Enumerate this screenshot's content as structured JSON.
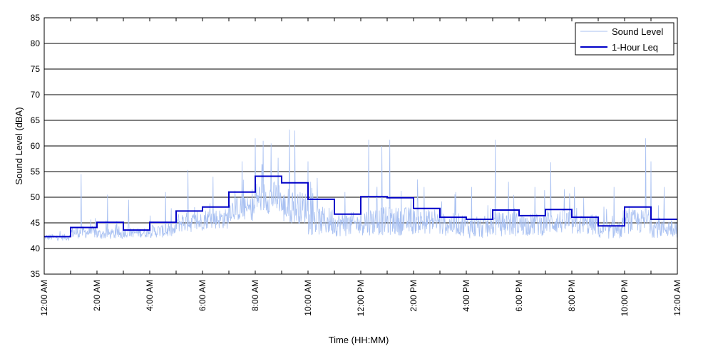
{
  "chart_data": {
    "type": "line",
    "xlabel": "Time (HH:MM)",
    "ylabel": "Sound Level (dBA)",
    "ylim": [
      35,
      85
    ],
    "yticks": [
      35,
      40,
      45,
      50,
      55,
      60,
      65,
      70,
      75,
      80,
      85
    ],
    "xlim_hours": [
      0,
      24
    ],
    "xticks": [
      {
        "hour": 0,
        "label": "12:00 AM"
      },
      {
        "hour": 2,
        "label": "2:00 AM"
      },
      {
        "hour": 4,
        "label": "4:00 AM"
      },
      {
        "hour": 6,
        "label": "6:00 AM"
      },
      {
        "hour": 8,
        "label": "8:00 AM"
      },
      {
        "hour": 10,
        "label": "10:00 AM"
      },
      {
        "hour": 12,
        "label": "12:00 PM"
      },
      {
        "hour": 14,
        "label": "2:00 PM"
      },
      {
        "hour": 16,
        "label": "4:00 PM"
      },
      {
        "hour": 18,
        "label": "6:00 PM"
      },
      {
        "hour": 20,
        "label": "8:00 PM"
      },
      {
        "hour": 22,
        "label": "10:00 PM"
      },
      {
        "hour": 24,
        "label": "12:00 AM"
      }
    ],
    "grid": "horizontal",
    "legend_position": "top-right",
    "legend": [
      {
        "label": "Sound Level",
        "color": "#a9c1f2"
      },
      {
        "label": "1-Hour Leq",
        "color": "#0000c8"
      }
    ],
    "series": [
      {
        "name": "1-Hour Leq",
        "color": "#0000c8",
        "step": true,
        "hours": [
          0,
          1,
          2,
          3,
          4,
          5,
          6,
          7,
          8,
          9,
          10,
          11,
          12,
          13,
          14,
          15,
          16,
          17,
          18,
          19,
          20,
          21,
          22,
          23
        ],
        "values": [
          42.3,
          44.1,
          45.1,
          43.6,
          45.1,
          47.3,
          48.1,
          51.0,
          54.1,
          52.8,
          49.6,
          46.7,
          50.1,
          49.9,
          47.8,
          46.1,
          45.7,
          47.5,
          46.4,
          47.6,
          46.1,
          44.4,
          48.1,
          45.7
        ]
      },
      {
        "name": "Sound Level",
        "color": "#a9c1f2",
        "hourly_profile": {
          "base": [
            42.0,
            42.8,
            42.5,
            42.8,
            43.0,
            44.5,
            45.2,
            47.0,
            49.0,
            47.0,
            44.5,
            44.0,
            44.5,
            44.5,
            44.5,
            44.0,
            43.5,
            44.0,
            44.0,
            44.5,
            44.0,
            43.0,
            44.5,
            43.5
          ],
          "spread": [
            0.8,
            1.5,
            1.3,
            1.2,
            1.6,
            2.5,
            2.5,
            3.0,
            4.0,
            4.0,
            3.5,
            3.0,
            3.5,
            3.5,
            3.0,
            2.8,
            2.8,
            3.0,
            2.8,
            3.0,
            2.6,
            2.0,
            3.0,
            2.5
          ]
        },
        "peaks": [
          {
            "hour": 1.4,
            "value": 54.5
          },
          {
            "hour": 2.4,
            "value": 50.5
          },
          {
            "hour": 3.2,
            "value": 49.5
          },
          {
            "hour": 4.6,
            "value": 51.0
          },
          {
            "hour": 5.45,
            "value": 55.3
          },
          {
            "hour": 6.4,
            "value": 54.0
          },
          {
            "hour": 7.5,
            "value": 57.0
          },
          {
            "hour": 8.0,
            "value": 61.5
          },
          {
            "hour": 8.3,
            "value": 61.0
          },
          {
            "hour": 8.6,
            "value": 60.5
          },
          {
            "hour": 9.3,
            "value": 63.2
          },
          {
            "hour": 9.5,
            "value": 63.0
          },
          {
            "hour": 10.0,
            "value": 57.0
          },
          {
            "hour": 11.4,
            "value": 51.0
          },
          {
            "hour": 12.3,
            "value": 61.2
          },
          {
            "hour": 12.8,
            "value": 60.0
          },
          {
            "hour": 13.1,
            "value": 61.2
          },
          {
            "hour": 14.4,
            "value": 52.0
          },
          {
            "hour": 15.6,
            "value": 51.0
          },
          {
            "hour": 16.2,
            "value": 52.0
          },
          {
            "hour": 17.1,
            "value": 61.2
          },
          {
            "hour": 17.6,
            "value": 53.0
          },
          {
            "hour": 18.6,
            "value": 52.0
          },
          {
            "hour": 19.2,
            "value": 56.8
          },
          {
            "hour": 20.1,
            "value": 52.0
          },
          {
            "hour": 21.6,
            "value": 52.0
          },
          {
            "hour": 22.8,
            "value": 61.5
          },
          {
            "hour": 23.0,
            "value": 57.0
          },
          {
            "hour": 23.5,
            "value": 52.0
          }
        ]
      }
    ]
  }
}
